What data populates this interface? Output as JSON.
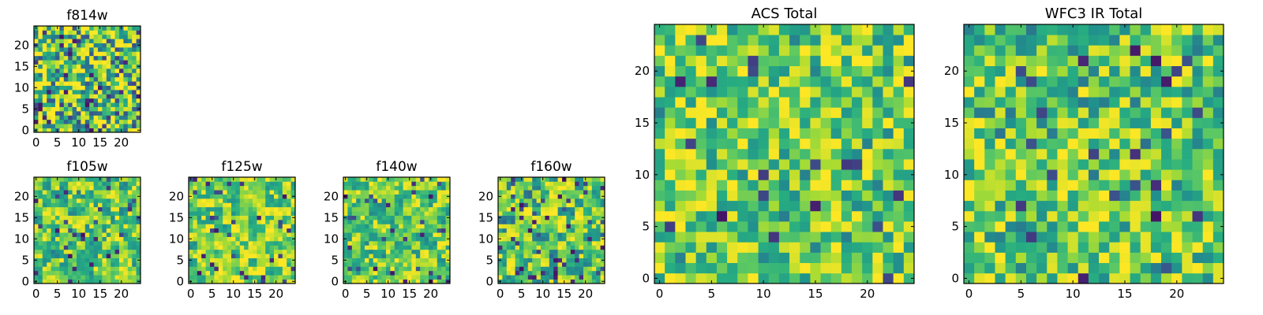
{
  "figure": {
    "background": "#ffffff"
  },
  "chart_data": [
    {
      "type": "heatmap",
      "id": "f814w",
      "title": "f814w",
      "grid": 25,
      "xlim": [
        0,
        24
      ],
      "ylim": [
        0,
        24
      ],
      "xticks": [
        0,
        5,
        10,
        15,
        20
      ],
      "yticks": [
        0,
        5,
        10,
        15,
        20
      ],
      "colormap": "viridis",
      "values": [],
      "seed": 814,
      "block": 1,
      "texture": 0.85,
      "dark_frac": 0.1,
      "base": 0.7
    },
    {
      "type": "heatmap",
      "id": "f105w",
      "title": "f105w",
      "grid": 25,
      "xlim": [
        0,
        24
      ],
      "ylim": [
        0,
        24
      ],
      "xticks": [
        0,
        5,
        10,
        15,
        20
      ],
      "yticks": [
        0,
        5,
        10,
        15,
        20
      ],
      "colormap": "viridis",
      "values": [],
      "seed": 105,
      "block": 2,
      "texture": 0.45,
      "dark_frac": 0.05,
      "base": 0.72
    },
    {
      "type": "heatmap",
      "id": "f125w",
      "title": "f125w",
      "grid": 25,
      "xlim": [
        0,
        24
      ],
      "ylim": [
        0,
        24
      ],
      "xticks": [
        0,
        5,
        10,
        15,
        20
      ],
      "yticks": [
        0,
        5,
        10,
        15,
        20
      ],
      "colormap": "viridis",
      "values": [],
      "seed": 125,
      "block": 2,
      "texture": 0.45,
      "dark_frac": 0.05,
      "base": 0.78
    },
    {
      "type": "heatmap",
      "id": "f140w",
      "title": "f140w",
      "grid": 25,
      "xlim": [
        0,
        24
      ],
      "ylim": [
        0,
        24
      ],
      "xticks": [
        0,
        5,
        10,
        15,
        20
      ],
      "yticks": [
        0,
        5,
        10,
        15,
        20
      ],
      "colormap": "viridis",
      "values": [],
      "seed": 140,
      "block": 2,
      "texture": 0.45,
      "dark_frac": 0.05,
      "base": 0.74
    },
    {
      "type": "heatmap",
      "id": "f160w",
      "title": "f160w",
      "grid": 25,
      "xlim": [
        0,
        24
      ],
      "ylim": [
        0,
        24
      ],
      "xticks": [
        0,
        5,
        10,
        15,
        20
      ],
      "yticks": [
        0,
        5,
        10,
        15,
        20
      ],
      "colormap": "viridis",
      "values": [],
      "seed": 160,
      "block": 2,
      "texture": 0.6,
      "dark_frac": 0.08,
      "base": 0.7
    },
    {
      "type": "heatmap",
      "id": "acs_total",
      "title": "ACS Total",
      "grid": 25,
      "xlim": [
        0,
        24
      ],
      "ylim": [
        0,
        24
      ],
      "xticks": [
        0,
        5,
        10,
        15,
        20
      ],
      "yticks": [
        0,
        5,
        10,
        15,
        20
      ],
      "colormap": "viridis",
      "values": [],
      "seed": 2001,
      "block": 1,
      "texture": 0.55,
      "dark_frac": 0.04,
      "base": 0.76
    },
    {
      "type": "heatmap",
      "id": "wfc3_total",
      "title": "WFC3 IR Total",
      "grid": 25,
      "xlim": [
        0,
        24
      ],
      "ylim": [
        0,
        24
      ],
      "xticks": [
        0,
        5,
        10,
        15,
        20
      ],
      "yticks": [
        0,
        5,
        10,
        15,
        20
      ],
      "colormap": "viridis",
      "values": [],
      "seed": 3001,
      "block": 1,
      "texture": 0.55,
      "dark_frac": 0.04,
      "base": 0.74
    }
  ]
}
